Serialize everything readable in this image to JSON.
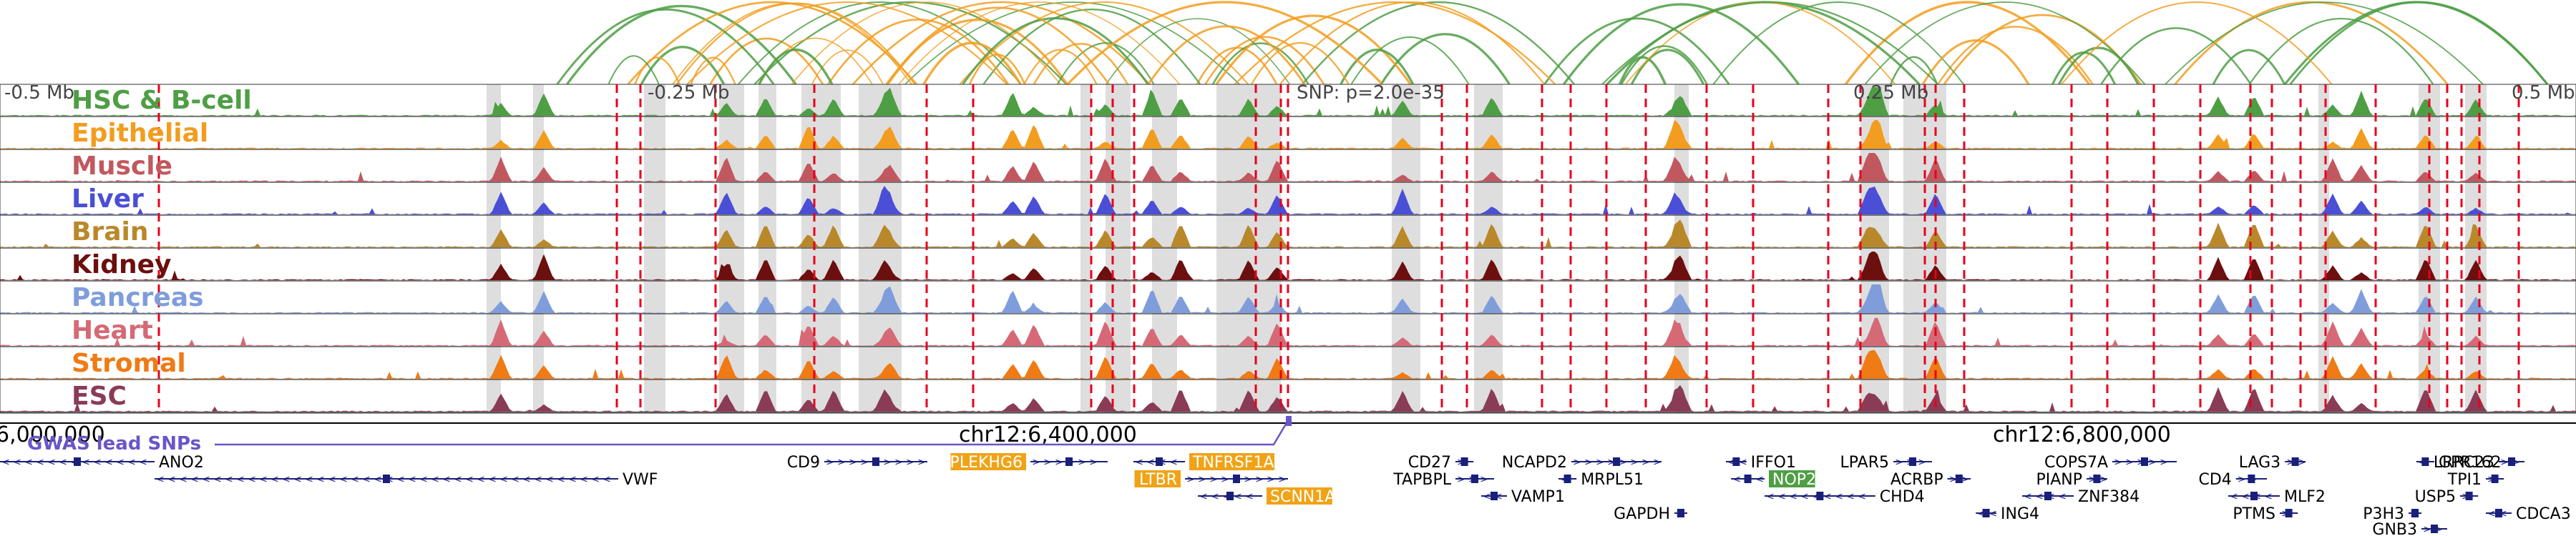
{
  "scale": {
    "left_label": "-0.5 Mb",
    "mid_left_label": "-0.25 Mb",
    "snp_label": "SNP: p=2.0e-35",
    "mid_right_label": "0.25 Mb",
    "right_label": "0.5 Mb"
  },
  "tracks": [
    {
      "label": "HSC & B-cell",
      "color": "#4e9e44",
      "seed": 3
    },
    {
      "label": "Epithelial",
      "color": "#f29d1f",
      "seed": 7
    },
    {
      "label": "Muscle",
      "color": "#c2585f",
      "seed": 11
    },
    {
      "label": "Liver",
      "color": "#4a4fd6",
      "seed": 13
    },
    {
      "label": "Brain",
      "color": "#b9882a",
      "seed": 17
    },
    {
      "label": "Kidney",
      "color": "#6b0f0f",
      "seed": 19
    },
    {
      "label": "Pancreas",
      "color": "#7f9ddb",
      "seed": 23
    },
    {
      "label": "Heart",
      "color": "#d56a76",
      "seed": 29
    },
    {
      "label": "Stromal",
      "color": "#f07a14",
      "seed": 31
    },
    {
      "label": "ESC",
      "color": "#8a3b55",
      "seed": 37
    }
  ],
  "axis": {
    "labels": [
      "6,000,000",
      "chr12:6,400,000",
      "chr12:6,800,000"
    ]
  },
  "gwas_label": "GWAS lead SNPs",
  "genes": [
    {
      "name": "ANO2",
      "row": 0,
      "start": 0.0,
      "end": 0.06,
      "strand": "-",
      "highlight": false
    },
    {
      "name": "VWF",
      "row": 1,
      "start": 0.06,
      "end": 0.24,
      "strand": "-",
      "highlight": false
    },
    {
      "name": "CD9",
      "row": 0,
      "start": 0.32,
      "end": 0.36,
      "strand": "+",
      "highlight": false
    },
    {
      "name": "PLEKHG6",
      "row": 0,
      "start": 0.4,
      "end": 0.43,
      "strand": "+",
      "highlight": true
    },
    {
      "name": "TNFRSF1A",
      "row": 0,
      "start": 0.44,
      "end": 0.46,
      "strand": "-",
      "highlight": true
    },
    {
      "name": "LTBR",
      "row": 1,
      "start": 0.46,
      "end": 0.5,
      "strand": "+",
      "highlight": true
    },
    {
      "name": "SCNN1A",
      "row": 2,
      "start": 0.465,
      "end": 0.49,
      "strand": "-",
      "highlight": true
    },
    {
      "name": "CD27",
      "row": 0,
      "start": 0.565,
      "end": 0.572,
      "strand": "+",
      "highlight": false
    },
    {
      "name": "TAPBPL",
      "row": 1,
      "start": 0.565,
      "end": 0.58,
      "strand": "+",
      "highlight": false
    },
    {
      "name": "VAMP1",
      "row": 2,
      "start": 0.575,
      "end": 0.585,
      "strand": "-",
      "highlight": false
    },
    {
      "name": "NCAPD2",
      "row": 0,
      "start": 0.61,
      "end": 0.645,
      "strand": "+",
      "highlight": false
    },
    {
      "name": "MRPL51",
      "row": 1,
      "start": 0.605,
      "end": 0.612,
      "strand": "-",
      "highlight": false
    },
    {
      "name": "GAPDH",
      "row": 3,
      "start": 0.65,
      "end": 0.655,
      "strand": "+",
      "highlight": false
    },
    {
      "name": "IFFO1",
      "row": 0,
      "start": 0.67,
      "end": 0.678,
      "strand": "-",
      "highlight": false
    },
    {
      "name": "NOP2",
      "row": 1,
      "start": 0.672,
      "end": 0.685,
      "strand": "-",
      "highlight": true
    },
    {
      "name": "CHD4",
      "row": 2,
      "start": 0.685,
      "end": 0.728,
      "strand": "-",
      "highlight": false
    },
    {
      "name": "LPAR5",
      "row": 0,
      "start": 0.735,
      "end": 0.75,
      "strand": "+",
      "highlight": false
    },
    {
      "name": "ACRBP",
      "row": 1,
      "start": 0.756,
      "end": 0.765,
      "strand": "+",
      "highlight": false
    },
    {
      "name": "ING4",
      "row": 3,
      "start": 0.767,
      "end": 0.775,
      "strand": "-",
      "highlight": false
    },
    {
      "name": "ZNF384",
      "row": 2,
      "start": 0.785,
      "end": 0.805,
      "strand": "-",
      "highlight": false
    },
    {
      "name": "COPS7A",
      "row": 0,
      "start": 0.82,
      "end": 0.845,
      "strand": "+",
      "highlight": false
    },
    {
      "name": "PIANP",
      "row": 1,
      "start": 0.81,
      "end": 0.818,
      "strand": "+",
      "highlight": false
    },
    {
      "name": "LAG3",
      "row": 0,
      "start": 0.887,
      "end": 0.895,
      "strand": "+",
      "highlight": false
    },
    {
      "name": "CD4",
      "row": 1,
      "start": 0.868,
      "end": 0.88,
      "strand": "+",
      "highlight": false
    },
    {
      "name": "MLF2",
      "row": 2,
      "start": 0.865,
      "end": 0.885,
      "strand": "-",
      "highlight": false
    },
    {
      "name": "PTMS",
      "row": 3,
      "start": 0.885,
      "end": 0.892,
      "strand": "+",
      "highlight": false
    },
    {
      "name": "GPR162",
      "row": 0,
      "start": 0.938,
      "end": 0.945,
      "strand": "-",
      "highlight": false
    },
    {
      "name": "P3H3",
      "row": 3,
      "start": 0.935,
      "end": 0.94,
      "strand": "+",
      "highlight": false
    },
    {
      "name": "GNB3",
      "row": 4,
      "start": 0.94,
      "end": 0.95,
      "strand": "+",
      "highlight": false
    },
    {
      "name": "USP5",
      "row": 2,
      "start": 0.955,
      "end": 0.962,
      "strand": "+",
      "highlight": false
    },
    {
      "name": "CDCA3",
      "row": 3,
      "start": 0.965,
      "end": 0.975,
      "strand": "-",
      "highlight": false
    },
    {
      "name": "LRRC23",
      "row": 0,
      "start": 0.97,
      "end": 0.98,
      "strand": "+",
      "highlight": false
    },
    {
      "name": "TPI1",
      "row": 1,
      "start": 0.965,
      "end": 0.972,
      "strand": "+",
      "highlight": false
    }
  ],
  "colors": {
    "snp_line": "#e8001c",
    "highlight_band": "#dedede",
    "gwas": "#6a55c8",
    "gene": "#1a1f7a",
    "gene_highlight_orange": "#f0a316",
    "gene_highlight_green": "#4e9e44",
    "arc_orange": "#f29d1f",
    "arc_green": "#4e9e44"
  }
}
